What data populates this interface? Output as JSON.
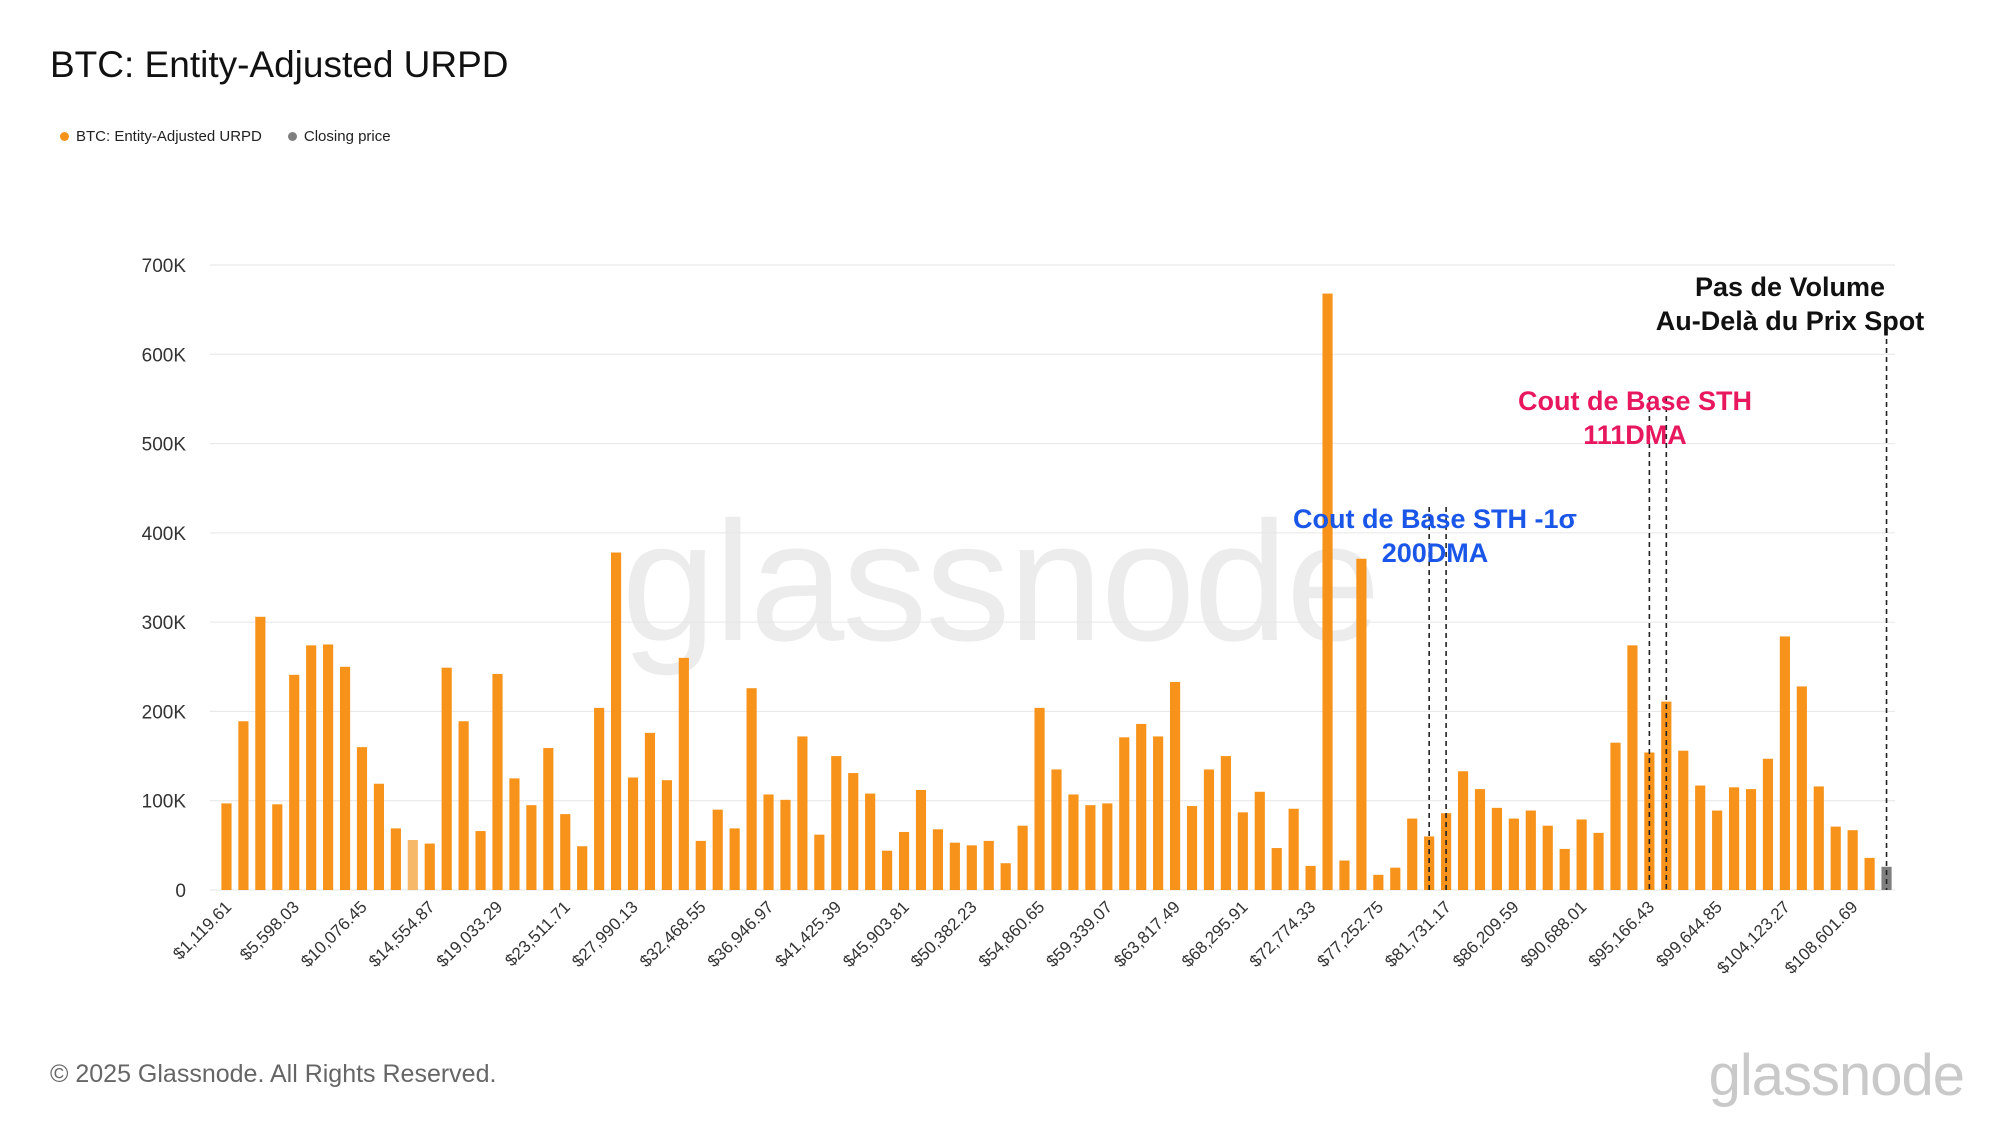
{
  "header": {
    "title": "BTC: Entity-Adjusted URPD"
  },
  "legend": [
    {
      "label": "BTC: Entity-Adjusted URPD",
      "color": "#f7931a"
    },
    {
      "label": "Closing price",
      "color": "#7f7f7f"
    }
  ],
  "footer": {
    "copyright": "© 2025 Glassnode. All Rights Reserved.",
    "brand": "glassnode"
  },
  "watermark": "glassnode",
  "chart_data": {
    "type": "bar",
    "title": "BTC: Entity-Adjusted URPD",
    "xlabel": "",
    "ylabel": "",
    "ylim": [
      0,
      700000
    ],
    "yticks": [
      0,
      100000,
      200000,
      300000,
      400000,
      500000,
      600000,
      700000
    ],
    "ytick_labels": [
      "0",
      "100K",
      "200K",
      "300K",
      "400K",
      "500K",
      "600K",
      "700K"
    ],
    "xtick_labels": [
      "$1,119.61",
      "$5,598.03",
      "$10,076.45",
      "$14,554.87",
      "$19,033.29",
      "$23,511.71",
      "$27,990.13",
      "$32,468.55",
      "$36,946.97",
      "$41,425.39",
      "$45,903.81",
      "$50,382.23",
      "$54,860.65",
      "$59,339.07",
      "$63,817.49",
      "$68,295.91",
      "$72,774.33",
      "$77,252.75",
      "$81,731.17",
      "$86,209.59",
      "$90,688.01",
      "$95,166.43",
      "$99,644.85",
      "$104,123.27",
      "$108,601.69"
    ],
    "xtick_every": 4,
    "grid": true,
    "legend_position": "top-left",
    "series": [
      {
        "name": "BTC: Entity-Adjusted URPD",
        "color": "#f7931a",
        "values": [
          97000,
          189000,
          306000,
          96000,
          241000,
          274000,
          275000,
          250000,
          160000,
          119000,
          69000,
          56000,
          52000,
          249000,
          189000,
          66000,
          242000,
          125000,
          95000,
          159000,
          85000,
          49000,
          204000,
          378000,
          126000,
          176000,
          123000,
          260000,
          55000,
          90000,
          69000,
          226000,
          107000,
          101000,
          172000,
          62000,
          150000,
          131000,
          108000,
          44000,
          65000,
          112000,
          68000,
          53000,
          50000,
          55000,
          30000,
          72000,
          204000,
          135000,
          107000,
          95000,
          97000,
          171000,
          186000,
          172000,
          233000,
          94000,
          135000,
          150000,
          87000,
          110000,
          47000,
          91000,
          27000,
          668000,
          33000,
          371000,
          17000,
          25000,
          80000,
          60000,
          86000,
          133000,
          113000,
          92000,
          80000,
          89000,
          72000,
          46000,
          79000,
          64000,
          165000,
          274000,
          154000,
          211000,
          156000,
          117000,
          89000,
          115000,
          113000,
          147000,
          284000,
          228000,
          116000,
          71000,
          67000,
          36000,
          26000
        ]
      }
    ],
    "highlighted_bars": [
      {
        "index": 11,
        "color": "#f7b86a"
      },
      {
        "index": 98,
        "color": "#7f7f7f"
      }
    ],
    "annotations": [
      {
        "lines": [
          "Pas de Volume",
          "Au-Delà du Prix Spot"
        ],
        "color": "#111111",
        "bar_indices": [
          98
        ]
      },
      {
        "lines": [
          "Cout de Base STH",
          "111DMA"
        ],
        "color": "#e8185e",
        "bar_indices": [
          84,
          85
        ]
      },
      {
        "lines": [
          "Cout de Base STH -1σ",
          "200DMA"
        ],
        "color": "#1a56e8",
        "bar_indices": [
          71,
          72
        ]
      }
    ]
  }
}
